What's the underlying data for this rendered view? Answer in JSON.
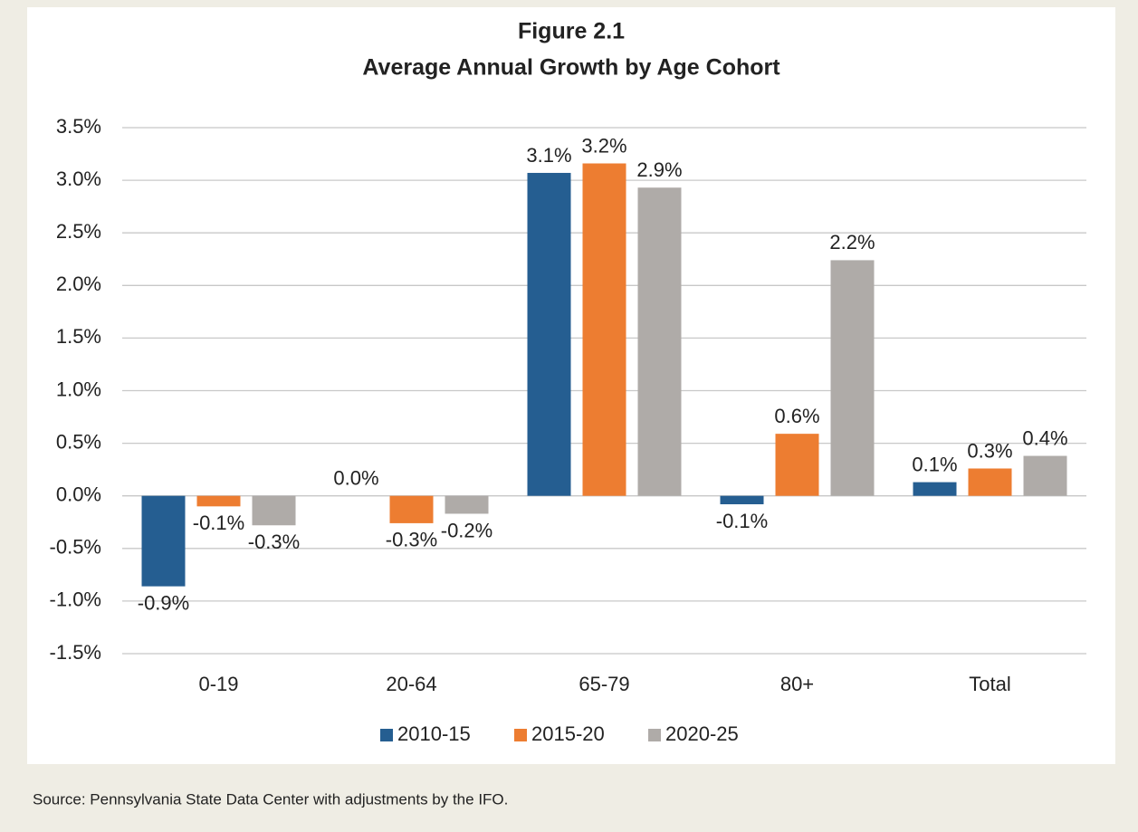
{
  "chart_data": {
    "type": "bar",
    "title": "Figure 2.1",
    "subtitle": "Average Annual Growth by Age Cohort",
    "source": "Source: Pennsylvania State Data Center with adjustments by the IFO.",
    "categories": [
      "0-19",
      "20-64",
      "65-79",
      "80+",
      "Total"
    ],
    "series": [
      {
        "name": "2010-15",
        "color": "#255e91",
        "values": [
          -0.86,
          0.0,
          3.07,
          -0.08,
          0.13
        ],
        "value_labels": [
          "-0.9%",
          "0.0%",
          "3.1%",
          "-0.1%",
          "0.1%"
        ]
      },
      {
        "name": "2015-20",
        "color": "#ed7d31",
        "values": [
          -0.1,
          -0.26,
          3.16,
          0.59,
          0.26
        ],
        "value_labels": [
          "-0.1%",
          "-0.3%",
          "3.2%",
          "0.6%",
          "0.3%"
        ]
      },
      {
        "name": "2020-25",
        "color": "#afaba8",
        "values": [
          -0.28,
          -0.17,
          2.93,
          2.24,
          0.38
        ],
        "value_labels": [
          "-0.3%",
          "-0.2%",
          "2.9%",
          "2.2%",
          "0.4%"
        ]
      }
    ],
    "ylim": [
      -1.5,
      3.5
    ],
    "yticks": [
      {
        "value": -1.5,
        "label": "-1.5%"
      },
      {
        "value": -1.0,
        "label": "-1.0%"
      },
      {
        "value": -0.5,
        "label": "-0.5%"
      },
      {
        "value": 0.0,
        "label": "0.0%"
      },
      {
        "value": 0.5,
        "label": "0.5%"
      },
      {
        "value": 1.0,
        "label": "1.0%"
      },
      {
        "value": 1.5,
        "label": "1.5%"
      },
      {
        "value": 2.0,
        "label": "2.0%"
      },
      {
        "value": 2.5,
        "label": "2.5%"
      },
      {
        "value": 3.0,
        "label": "3.0%"
      },
      {
        "value": 3.5,
        "label": "3.5%"
      }
    ],
    "grid": true,
    "legend": "bottom"
  }
}
